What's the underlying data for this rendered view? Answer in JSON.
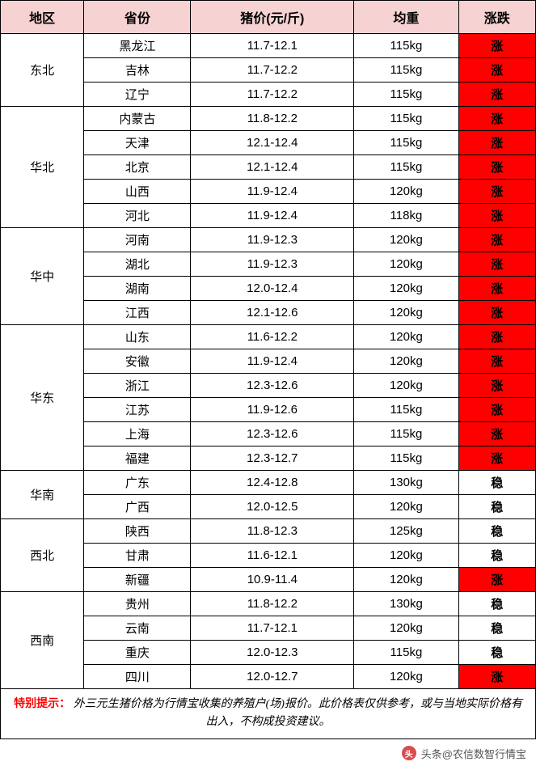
{
  "colors": {
    "header_bg": "#f6d2d3",
    "border": "#000000",
    "trend_up_bg": "#ff0000",
    "trend_up_text": "#ffffff",
    "trend_stable_bg": "#ffffff",
    "trend_stable_text": "#000000",
    "footnote_label": "#ff0000"
  },
  "columns": [
    "地区",
    "省份",
    "猪价(元/斤)",
    "均重",
    "涨跌"
  ],
  "regions": [
    {
      "name": "东北",
      "rows": [
        {
          "province": "黑龙江",
          "price": "11.7-12.1",
          "weight": "115kg",
          "trend": "涨",
          "ttype": "up"
        },
        {
          "province": "吉林",
          "price": "11.7-12.2",
          "weight": "115kg",
          "trend": "涨",
          "ttype": "up"
        },
        {
          "province": "辽宁",
          "price": "11.7-12.2",
          "weight": "115kg",
          "trend": "涨",
          "ttype": "up"
        }
      ]
    },
    {
      "name": "华北",
      "rows": [
        {
          "province": "内蒙古",
          "price": "11.8-12.2",
          "weight": "115kg",
          "trend": "涨",
          "ttype": "up"
        },
        {
          "province": "天津",
          "price": "12.1-12.4",
          "weight": "115kg",
          "trend": "涨",
          "ttype": "up"
        },
        {
          "province": "北京",
          "price": "12.1-12.4",
          "weight": "115kg",
          "trend": "涨",
          "ttype": "up"
        },
        {
          "province": "山西",
          "price": "11.9-12.4",
          "weight": "120kg",
          "trend": "涨",
          "ttype": "up"
        },
        {
          "province": "河北",
          "price": "11.9-12.4",
          "weight": "118kg",
          "trend": "涨",
          "ttype": "up"
        }
      ]
    },
    {
      "name": "华中",
      "rows": [
        {
          "province": "河南",
          "price": "11.9-12.3",
          "weight": "120kg",
          "trend": "涨",
          "ttype": "up"
        },
        {
          "province": "湖北",
          "price": "11.9-12.3",
          "weight": "120kg",
          "trend": "涨",
          "ttype": "up"
        },
        {
          "province": "湖南",
          "price": "12.0-12.4",
          "weight": "120kg",
          "trend": "涨",
          "ttype": "up"
        },
        {
          "province": "江西",
          "price": "12.1-12.6",
          "weight": "120kg",
          "trend": "涨",
          "ttype": "up"
        }
      ]
    },
    {
      "name": "华东",
      "rows": [
        {
          "province": "山东",
          "price": "11.6-12.2",
          "weight": "120kg",
          "trend": "涨",
          "ttype": "up"
        },
        {
          "province": "安徽",
          "price": "11.9-12.4",
          "weight": "120kg",
          "trend": "涨",
          "ttype": "up"
        },
        {
          "province": "浙江",
          "price": "12.3-12.6",
          "weight": "120kg",
          "trend": "涨",
          "ttype": "up"
        },
        {
          "province": "江苏",
          "price": "11.9-12.6",
          "weight": "115kg",
          "trend": "涨",
          "ttype": "up"
        },
        {
          "province": "上海",
          "price": "12.3-12.6",
          "weight": "115kg",
          "trend": "涨",
          "ttype": "up"
        },
        {
          "province": "福建",
          "price": "12.3-12.7",
          "weight": "115kg",
          "trend": "涨",
          "ttype": "up"
        }
      ]
    },
    {
      "name": "华南",
      "rows": [
        {
          "province": "广东",
          "price": "12.4-12.8",
          "weight": "130kg",
          "trend": "稳",
          "ttype": "stable"
        },
        {
          "province": "广西",
          "price": "12.0-12.5",
          "weight": "120kg",
          "trend": "稳",
          "ttype": "stable"
        }
      ]
    },
    {
      "name": "西北",
      "rows": [
        {
          "province": "陕西",
          "price": "11.8-12.3",
          "weight": "125kg",
          "trend": "稳",
          "ttype": "stable"
        },
        {
          "province": "甘肃",
          "price": "11.6-12.1",
          "weight": "120kg",
          "trend": "稳",
          "ttype": "stable"
        },
        {
          "province": "新疆",
          "price": "10.9-11.4",
          "weight": "120kg",
          "trend": "涨",
          "ttype": "up"
        }
      ]
    },
    {
      "name": "西南",
      "rows": [
        {
          "province": "贵州",
          "price": "11.8-12.2",
          "weight": "130kg",
          "trend": "稳",
          "ttype": "stable"
        },
        {
          "province": "云南",
          "price": "11.7-12.1",
          "weight": "120kg",
          "trend": "稳",
          "ttype": "stable"
        },
        {
          "province": "重庆",
          "price": "12.0-12.3",
          "weight": "115kg",
          "trend": "稳",
          "ttype": "stable"
        },
        {
          "province": "四川",
          "price": "12.0-12.7",
          "weight": "120kg",
          "trend": "涨",
          "ttype": "up"
        }
      ]
    }
  ],
  "footnote": {
    "label": "特别提示：",
    "text": "外三元生猪价格为行情宝收集的养殖户(场)报价。此价格表仅供参考，或与当地实际价格有出入，不构成投资建议。"
  },
  "attribution": {
    "icon_text": "头",
    "text": "头条@农信数智行情宝"
  }
}
